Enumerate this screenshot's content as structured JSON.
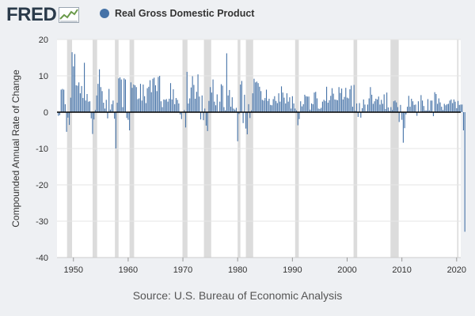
{
  "logo": {
    "text": "FRED",
    "icon": "line-chart-icon"
  },
  "legend": {
    "label": "Real Gross Domestic Product",
    "color": "#4572a7"
  },
  "source": "Source: U.S. Bureau of Economic Analysis",
  "chart_data": {
    "type": "bar",
    "title": "",
    "xlabel": "",
    "ylabel": "Compounded Annual Rate of Change",
    "series_name": "Real Gross Domestic Product",
    "xlim": [
      1947.0,
      2020.75
    ],
    "ylim": [
      -40,
      20
    ],
    "y_ticks": [
      20,
      10,
      0,
      -10,
      -20,
      -30,
      -40
    ],
    "x_ticks": [
      1950,
      1960,
      1970,
      1980,
      1990,
      2000,
      2010,
      2020
    ],
    "grid": true,
    "legend_position": "top",
    "bar_color": "#4572a7",
    "recession_color": "#dcdcdc",
    "recessions": [
      [
        1948.833,
        1949.75
      ],
      [
        1953.5,
        1954.333
      ],
      [
        1957.583,
        1958.25
      ],
      [
        1960.25,
        1961.083
      ],
      [
        1969.917,
        1970.833
      ],
      [
        1973.833,
        1975.167
      ],
      [
        1980.0,
        1980.5
      ],
      [
        1981.5,
        1982.833
      ],
      [
        1990.5,
        1991.167
      ],
      [
        2001.167,
        2001.833
      ],
      [
        2007.917,
        2009.417
      ],
      [
        2020.083,
        2020.333
      ]
    ],
    "start_date": "1947-04-01",
    "frequency": "quarterly",
    "values": [
      -1.0,
      -0.8,
      6.2,
      6.4,
      6.2,
      2.2,
      -5.4,
      -1.5,
      -3.5,
      4.0,
      16.5,
      12.6,
      16.0,
      7.4,
      7.3,
      8.2,
      5.2,
      7.2,
      3.9,
      13.6,
      3.2,
      5.0,
      2.9,
      3.0,
      -1.7,
      -6.0,
      -2.0,
      0.6,
      4.6,
      7.8,
      11.8,
      6.9,
      5.8,
      2.6,
      1.0,
      3.4,
      -1.7,
      6.4,
      0.7,
      2.2,
      3.2,
      -1.8,
      -10.0,
      2.6,
      9.3,
      9.6,
      9.0,
      1.4,
      9.3,
      9.0,
      -1.6,
      -2.1,
      -5.0,
      8.2,
      6.7,
      7.6,
      7.4,
      6.9,
      3.6,
      3.8,
      7.8,
      3.2,
      7.6,
      4.4,
      2.5,
      6.6,
      7.0,
      8.8,
      5.5,
      9.2,
      9.5,
      7.4,
      5.8,
      9.7,
      10.0,
      3.0,
      1.4,
      3.5,
      3.4,
      3.6,
      2.9,
      3.7,
      8.0,
      3.5,
      6.3,
      2.2,
      3.9,
      3.4,
      2.4,
      -0.6,
      -1.9,
      0.1,
      0.6,
      -4.2,
      11.1,
      2.4,
      3.8,
      6.8,
      9.9,
      7.5,
      3.7,
      5.6,
      10.4,
      4.3,
      -2.0,
      4.6,
      -2.2,
      1.0,
      -3.7,
      -5.2,
      3.1,
      6.9,
      5.4,
      9.0,
      2.9,
      1.9,
      4.9,
      0.2,
      2.9,
      7.7,
      7.3,
      1.4,
      0.5,
      16.2,
      4.6,
      6.1,
      1.5,
      4.1,
      1.0,
      0.7,
      1.2,
      -8.0,
      -0.5,
      7.6,
      8.6,
      -3.0,
      4.8,
      -4.5,
      -6.1,
      2.2,
      -1.6,
      0.5,
      5.2,
      9.2,
      8.2,
      8.4,
      8.0,
      7.0,
      5.8,
      3.4,
      3.2,
      3.9,
      6.2,
      3.1,
      3.7,
      2.0,
      1.9,
      3.6,
      4.4,
      3.1,
      2.5,
      5.2,
      2.9,
      7.1,
      5.4,
      4.0,
      2.4,
      5.2,
      2.9,
      4.1,
      1.0,
      4.4,
      2.4,
      1.0,
      0.5,
      -3.6,
      -1.9,
      3.0,
      1.6,
      2.2,
      4.8,
      4.4,
      4.3,
      4.3,
      0.7,
      2.4,
      2.2,
      5.4,
      5.6,
      3.8,
      1.0,
      0.9,
      1.2,
      2.9,
      3.4,
      3.1,
      7.0,
      2.6,
      3.3,
      4.5,
      6.6,
      5.1,
      3.5,
      3.4,
      3.3,
      6.9,
      5.3,
      6.5,
      3.5,
      4.2,
      6.7,
      4.0,
      3.8,
      6.3,
      7.3,
      1.5,
      7.5,
      0.4,
      2.4,
      -1.3,
      2.5,
      -1.5,
      1.1,
      3.5,
      2.1,
      0.3,
      2.1,
      3.8,
      6.9,
      4.8,
      2.3,
      3.0,
      3.7,
      3.5,
      4.3,
      2.1,
      3.4,
      2.3,
      4.9,
      0.9,
      5.4,
      1.3,
      0.4,
      1.4,
      0.6,
      3.0,
      3.2,
      2.7,
      1.4,
      -2.7,
      2.0,
      -2.1,
      -8.4,
      -4.4,
      -0.6,
      1.5,
      4.5,
      1.5,
      3.7,
      3.0,
      2.0,
      2.1,
      -1.0,
      3.0,
      0.1,
      4.7,
      3.2,
      1.7,
      0.5,
      0.5,
      3.6,
      0.5,
      3.2,
      3.2,
      -1.1,
      5.5,
      5.0,
      2.3,
      3.8,
      2.7,
      1.5,
      0.6,
      2.3,
      1.9,
      2.2,
      2.3,
      3.2,
      3.5,
      2.5,
      3.5,
      2.9,
      1.1,
      3.1,
      2.0,
      2.1,
      2.1,
      -5.0,
      -32.9
    ]
  }
}
